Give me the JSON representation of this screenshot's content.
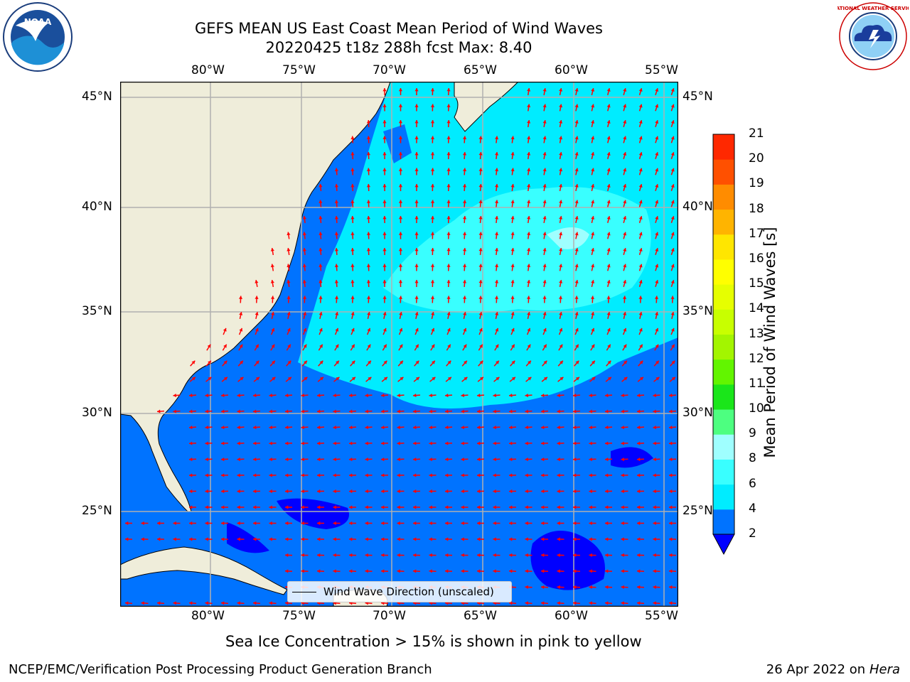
{
  "header": {
    "title_line1": "GEFS MEAN US East Coast Mean Period of Wind Waves",
    "title_line2": "20220425 t18z 288h fcst   Max: 8.40"
  },
  "logos": {
    "left": "NOAA",
    "right_text": "NATIONAL WEATHER SERVICE"
  },
  "map": {
    "lon_labels": [
      "80°W",
      "75°W",
      "70°W",
      "65°W",
      "60°W",
      "55°W"
    ],
    "lat_labels": [
      "45°N",
      "40°N",
      "35°N",
      "30°N",
      "25°N"
    ],
    "legend_label": "Wind Wave Direction (unscaled)",
    "colors": {
      "land": "#efedda",
      "band_0_2": "#0000ff",
      "band_2_4": "#0073ff",
      "band_4_6": "#00ecff",
      "band_6_8": "#39ffff",
      "band_8_9": "#9fffff",
      "arrow": "#ff0000",
      "grid": "#b0b0b0"
    }
  },
  "colorbar": {
    "label": "Mean Period of Wind Waves [s]",
    "ticks": [
      "2",
      "4",
      "6",
      "8",
      "9",
      "10",
      "11",
      "12",
      "13",
      "14",
      "15",
      "16",
      "17",
      "18",
      "19",
      "20",
      "21"
    ],
    "colors": [
      "#0073ff",
      "#00ecff",
      "#39ffff",
      "#9fffff",
      "#4dff80",
      "#1ae61a",
      "#62f500",
      "#a3f500",
      "#c8ff00",
      "#e6ff00",
      "#ffff00",
      "#ffe600",
      "#ffb400",
      "#ff8c00",
      "#ff5000",
      "#ff2800",
      "#ff0000"
    ],
    "under_color": "#0000ff"
  },
  "caption": "Sea Ice Concentration > 15% is shown in pink to yellow",
  "footer": {
    "left": "NCEP/EMC/Verification Post Processing Product Generation Branch",
    "date": "26 Apr 2022 on ",
    "machine": "Hera"
  }
}
